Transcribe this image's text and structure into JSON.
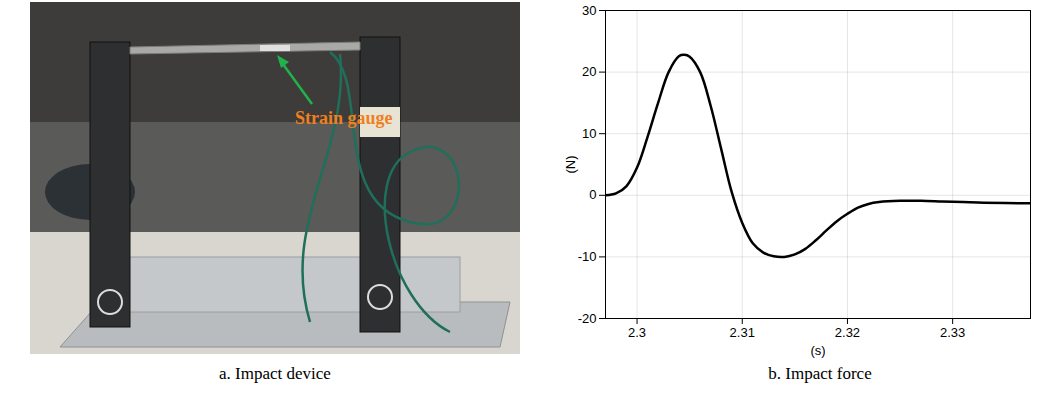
{
  "chart_data": {
    "type": "line",
    "title": "b. Impact force",
    "xlabel": "(s)",
    "ylabel": "(N)",
    "x": [
      2.297,
      2.298,
      2.299,
      2.3,
      2.301,
      2.302,
      2.303,
      2.304,
      2.3045,
      2.305,
      2.306,
      2.307,
      2.308,
      2.309,
      2.31,
      2.311,
      2.312,
      2.313,
      2.314,
      2.315,
      2.316,
      2.317,
      2.318,
      2.319,
      2.32,
      2.321,
      2.322,
      2.323,
      2.325,
      2.327,
      2.329,
      2.331,
      2.333,
      2.3374
    ],
    "values": [
      0,
      0.3,
      1.5,
      4.5,
      9.5,
      15,
      20,
      22.6,
      22.8,
      22.5,
      20,
      14.5,
      7.5,
      0.5,
      -4.5,
      -7.8,
      -9.3,
      -9.9,
      -10,
      -9.6,
      -8.7,
      -7.3,
      -5.7,
      -4.2,
      -3,
      -2,
      -1.4,
      -1.1,
      -0.9,
      -0.9,
      -1,
      -1.1,
      -1.2,
      -1.3
    ],
    "color": "#000000",
    "xlim": [
      2.297,
      2.3374
    ],
    "xticks": [
      2.3,
      2.31,
      2.32,
      2.33
    ],
    "ylim": [
      -20,
      30
    ],
    "yticks": [
      -20,
      -10,
      0,
      10,
      20,
      30
    ],
    "grid": true
  },
  "photo": {
    "annotation": "Strain gauge",
    "caption": "a. Impact device"
  }
}
